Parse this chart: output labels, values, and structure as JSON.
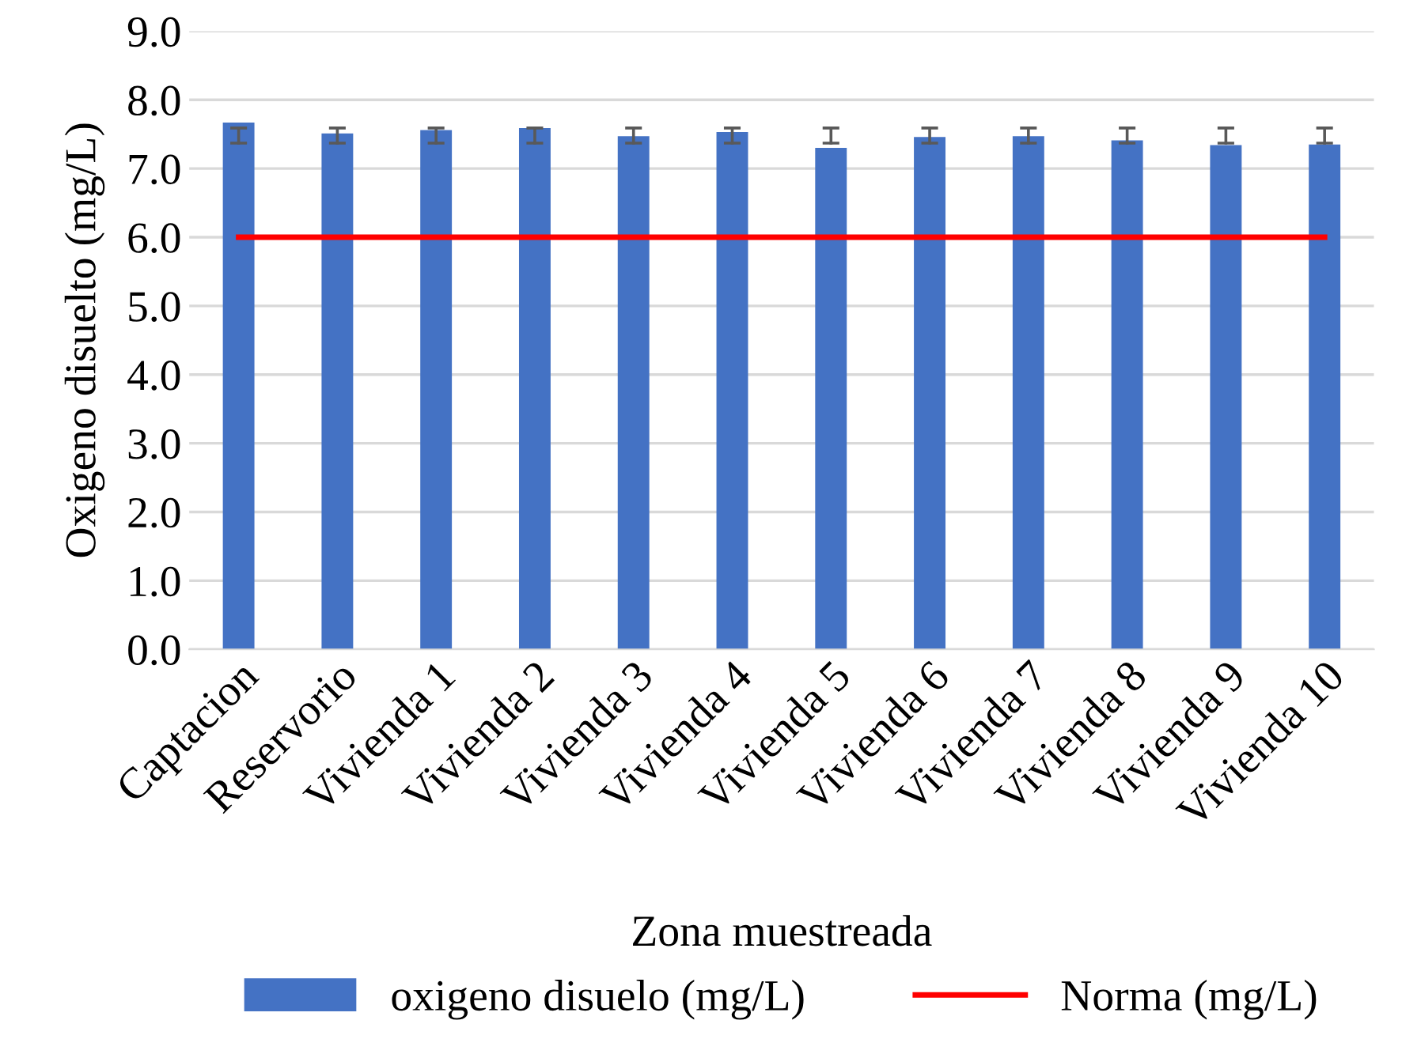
{
  "chart_data": {
    "type": "bar",
    "xlabel": "Zona muestreada",
    "ylabel": "Oxigeno disuelto (mg/L)",
    "categories": [
      "Captacion",
      "Reservorio",
      "Vivienda 1",
      "Vivienda 2",
      "Vivienda 3",
      "Vivienda 4",
      "Vivienda 5",
      "Vivienda 6",
      "Vivienda 7",
      "Vivienda 8",
      "Vivienda 9",
      "Vivienda 10"
    ],
    "series": [
      {
        "name": "oxigeno disuelo (mg/L)",
        "color": "#4472c4",
        "values": [
          7.67,
          7.51,
          7.56,
          7.59,
          7.47,
          7.53,
          7.3,
          7.46,
          7.47,
          7.41,
          7.34,
          7.35
        ],
        "errors": [
          [
            7.37,
            7.59
          ],
          [
            7.37,
            7.59
          ],
          [
            7.37,
            7.59
          ],
          [
            7.37,
            7.59
          ],
          [
            7.37,
            7.59
          ],
          [
            7.37,
            7.59
          ],
          [
            7.37,
            7.59
          ],
          [
            7.37,
            7.59
          ],
          [
            7.37,
            7.59
          ],
          [
            7.37,
            7.59
          ],
          [
            7.37,
            7.59
          ],
          [
            7.37,
            7.59
          ]
        ]
      },
      {
        "name": "Norma (mg/L)",
        "type": "line",
        "color": "#ff0000",
        "values": [
          6,
          6,
          6,
          6,
          6,
          6,
          6,
          6,
          6,
          6,
          6,
          6
        ]
      }
    ],
    "ylim": [
      0,
      9
    ],
    "yticks": [
      {
        "value": 0,
        "label": "0.0"
      },
      {
        "value": 1,
        "label": "1.0"
      },
      {
        "value": 2,
        "label": "2.0"
      },
      {
        "value": 3,
        "label": "3.0"
      },
      {
        "value": 4,
        "label": "4.0"
      },
      {
        "value": 5,
        "label": "5.0"
      },
      {
        "value": 6,
        "label": "6.0"
      },
      {
        "value": 7,
        "label": "7.0"
      },
      {
        "value": 8,
        "label": "8.0"
      },
      {
        "value": 9,
        "label": "9.0"
      }
    ],
    "grid": "y",
    "legend": "bottom",
    "marker": "none",
    "line_style": "solid"
  }
}
